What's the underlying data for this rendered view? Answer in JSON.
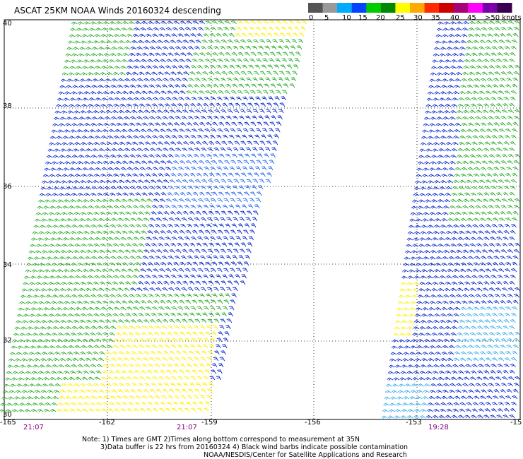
{
  "title": "ASCAT 25KM NOAA Winds 20160324 descending",
  "colorbar": {
    "labels": [
      "0",
      "5",
      "10",
      "15",
      "20",
      "25",
      "30",
      "35",
      "40",
      "45",
      ">50 knots"
    ],
    "colors": [
      "#555555",
      "#999999",
      "#00aaff",
      "#0044ff",
      "#00cc00",
      "#008800",
      "#ffff00",
      "#ffaa00",
      "#ff2a00",
      "#cc0000",
      "#aa0077",
      "#ff00ff",
      "#7a00aa",
      "#3a004f"
    ]
  },
  "lat_labels": [
    "40",
    "38",
    "36",
    "34",
    "32",
    "30"
  ],
  "lon_labels": [
    "-165",
    "-162",
    "-159",
    "-156",
    "-153",
    "-15"
  ],
  "times": [
    "21:07",
    "21:07",
    "19:28"
  ],
  "notes": [
    "Note: 1) Times are GMT 2)Times along bottom correspond to measurement at 35N",
    "3)Data buffer is 22 hrs from 20160324 4) Black wind barbs indicate possible contamination",
    "NOAA/NESDIS/Center for Satellite Applications and Research"
  ]
}
